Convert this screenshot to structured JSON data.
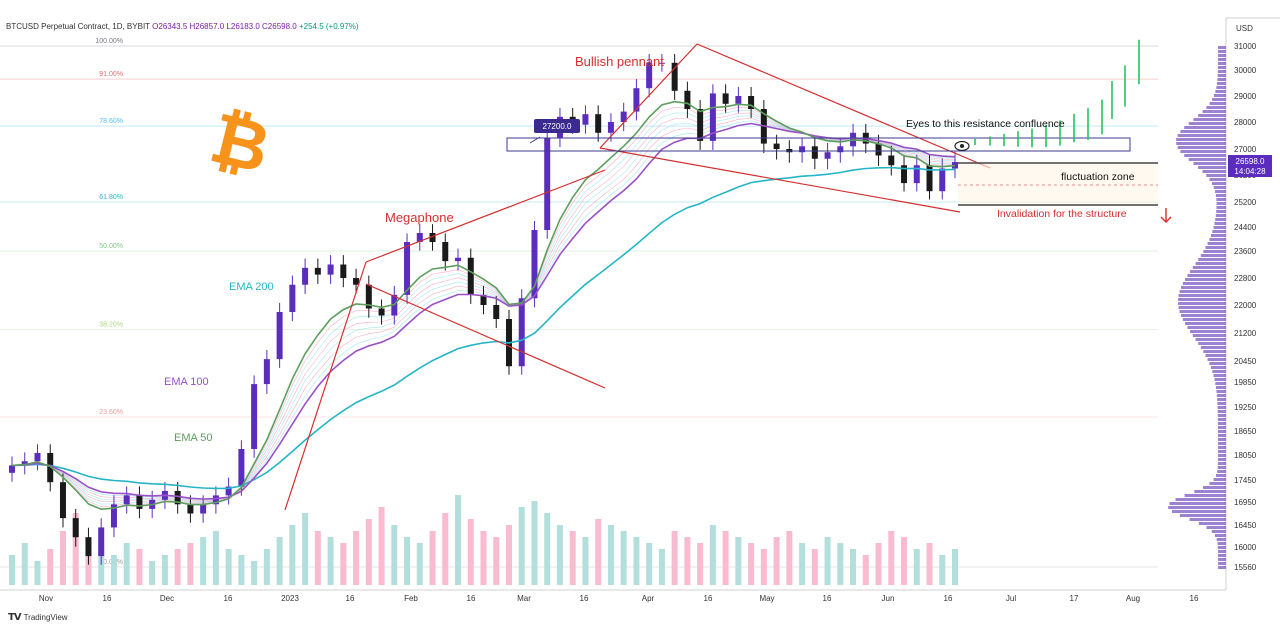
{
  "header": {
    "symbol": "BTCUSD Perpetual Contract, 1D, BYBIT",
    "ohlc": "O26343.5  H26857.0  L26183.0  C26598.0",
    "change": "+254.5 (+0.97%)"
  },
  "footer": {
    "brand": "TradingView"
  },
  "colors": {
    "candle_up": "#5b2dbf",
    "candle_down": "#1a1a1a",
    "ema200": "#26b5c7",
    "ema100": "#9b50c8",
    "ema50": "#5c9e5c",
    "annotation": "#d32f2f",
    "last_price_bg": "#5b2dbf",
    "bitcoin_orange": "#f7931a"
  },
  "chart_data": {
    "type": "candlestick",
    "axis_unit_label": "USD",
    "y_ticks": [
      31000,
      30000,
      29000,
      28000,
      27000,
      26200,
      25200,
      24400,
      23600,
      22800,
      22000,
      21200,
      20450,
      19850,
      19250,
      18650,
      18050,
      17450,
      16950,
      16450,
      16000,
      15560
    ],
    "x_ticks": [
      "Nov",
      "16",
      "Dec",
      "16",
      "2023",
      "16",
      "Feb",
      "16",
      "Mar",
      "16",
      "Apr",
      "16",
      "May",
      "16",
      "Jun",
      "16",
      "Jul",
      "17",
      "Aug",
      "16"
    ],
    "last_price": {
      "value": "26598.0",
      "countdown": "14:04:28"
    },
    "fib_levels": [
      {
        "label": "100.00%",
        "price": 31000,
        "color": "#787b86"
      },
      {
        "label": "91.00%",
        "price": 29650,
        "color": "#e57373"
      },
      {
        "label": "78.60%",
        "price": 27850,
        "color": "#4fc3f7"
      },
      {
        "label": "61.80%",
        "price": 25200,
        "color": "#26b5c7"
      },
      {
        "label": "50.00%",
        "price": 23600,
        "color": "#81c784"
      },
      {
        "label": "38.20%",
        "price": 21300,
        "color": "#aed581"
      },
      {
        "label": "23.60%",
        "price": 19000,
        "color": "#ef9a9a"
      },
      {
        "label": "0.00%",
        "price": 15560,
        "color": "#9e9e9e"
      }
    ],
    "annotations": {
      "bullish_pennant": "Bullish pennant",
      "megaphone": "Megaphone",
      "ema200": "EMA 200",
      "ema100": "EMA 100",
      "ema50": "EMA 50",
      "resistance": "Eyes to this resistance confluence",
      "fluctuation": "fluctuation zone",
      "invalidation": "Invalidation for the structure",
      "price_label": "27200.0"
    },
    "price_series": [
      17800,
      17900,
      18100,
      17400,
      16600,
      16200,
      15800,
      16400,
      16900,
      17100,
      16800,
      17000,
      17200,
      16900,
      16700,
      16900,
      17100,
      17300,
      18200,
      19800,
      20500,
      21800,
      22600,
      23100,
      22900,
      23200,
      22800,
      22600,
      21900,
      21700,
      22300,
      23900,
      24200,
      23900,
      23300,
      23400,
      22300,
      22000,
      21600,
      20300,
      22200,
      24300,
      27400,
      28200,
      27900,
      28300,
      27600,
      28000,
      28400,
      29300,
      30300,
      30300,
      29200,
      28500,
      27300,
      29100,
      28700,
      29000,
      28500,
      27200,
      27000,
      26900,
      27100,
      26700,
      26900,
      27100,
      27600,
      27200,
      26800,
      26500,
      25900,
      26500,
      25600,
      26400,
      26598
    ],
    "volume_series": [
      5,
      7,
      4,
      6,
      9,
      12,
      8,
      6,
      5,
      7,
      6,
      4,
      5,
      6,
      7,
      8,
      9,
      6,
      5,
      4,
      6,
      8,
      10,
      12,
      9,
      8,
      7,
      9,
      11,
      13,
      10,
      8,
      7,
      9,
      12,
      15,
      11,
      9,
      8,
      10,
      13,
      14,
      12,
      10,
      9,
      8,
      11,
      10,
      9,
      8,
      7,
      6,
      9,
      8,
      7,
      10,
      9,
      8,
      7,
      6,
      8,
      9,
      7,
      6,
      8,
      7,
      6,
      5,
      7,
      9,
      8,
      6,
      7,
      5,
      6
    ]
  }
}
